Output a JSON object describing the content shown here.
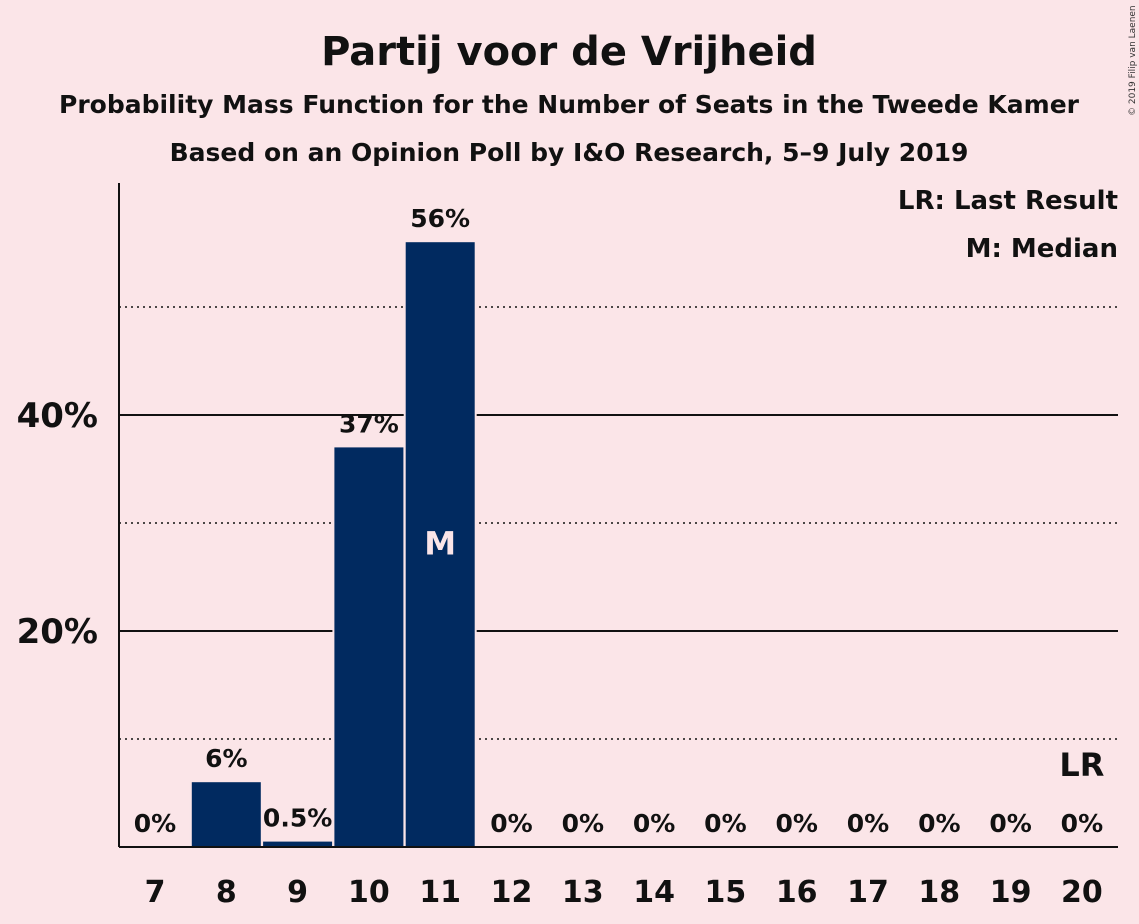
{
  "chart_data": {
    "type": "bar",
    "title": "Partij voor de Vrijheid",
    "subtitle": "Probability Mass Function for the Number of Seats in the Tweede Kamer",
    "subtitle2": "Based on an Opinion Poll by I&O Research, 5–9 July 2019",
    "categories": [
      "7",
      "8",
      "9",
      "10",
      "11",
      "12",
      "13",
      "14",
      "15",
      "16",
      "17",
      "18",
      "19",
      "20"
    ],
    "values": [
      0,
      6,
      0.5,
      37,
      56,
      0,
      0,
      0,
      0,
      0,
      0,
      0,
      0,
      0
    ],
    "value_labels": [
      "0%",
      "6%",
      "0.5%",
      "37%",
      "56%",
      "0%",
      "0%",
      "0%",
      "0%",
      "0%",
      "0%",
      "0%",
      "0%",
      "0%"
    ],
    "ylim": [
      0,
      60
    ],
    "yticks": [
      {
        "value": 20,
        "label": "20%"
      },
      {
        "value": 40,
        "label": "40%"
      }
    ],
    "minor_gridlines": [
      10,
      30,
      50
    ],
    "median_category": "11",
    "median_marker": "M",
    "last_result_category": "20",
    "last_result_marker": "LR",
    "legend": [
      "LR: Last Result",
      "M: Median"
    ],
    "legend_position": "top-right",
    "grid": true,
    "colors": {
      "bar": "#012a60",
      "background": "#fbe5e8",
      "median_text": "#fbe5e8"
    }
  },
  "copyright": "© 2019 Filip van Laenen"
}
